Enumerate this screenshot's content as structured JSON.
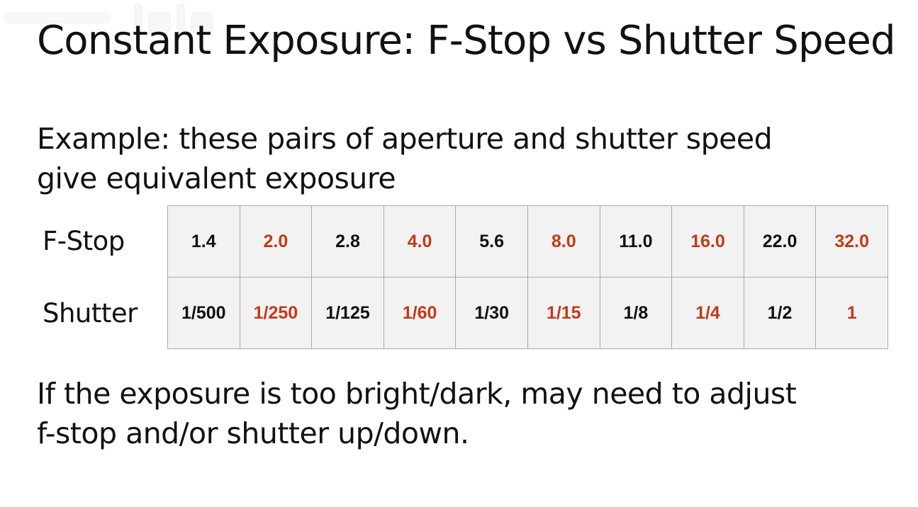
{
  "slide": {
    "title": "Constant Exposure: F-Stop vs Shutter Speed",
    "intro_lines": [
      "Example: these pairs of aperture and shutter speed",
      "give equivalent exposure"
    ],
    "closing_lines": [
      "If the exposure is too bright/dark, may need to adjust",
      "f-stop and/or shutter up/down."
    ]
  },
  "table": {
    "row_labels": {
      "fstop": "F-Stop",
      "shutter": "Shutter"
    },
    "fstop": [
      "1.4",
      "2.0",
      "2.8",
      "4.0",
      "5.6",
      "8.0",
      "11.0",
      "16.0",
      "22.0",
      "32.0"
    ],
    "shutter": [
      "1/500",
      "1/250",
      "1/125",
      "1/60",
      "1/30",
      "1/15",
      "1/8",
      "1/4",
      "1/2",
      "1"
    ]
  },
  "colors": {
    "text": "#111111",
    "accent_red": "#c23a1a",
    "cell_background": "#f2f2f2",
    "cell_border": "#a9a9a9"
  },
  "watermark": {
    "icon": "video-platform-logo-watermark"
  }
}
